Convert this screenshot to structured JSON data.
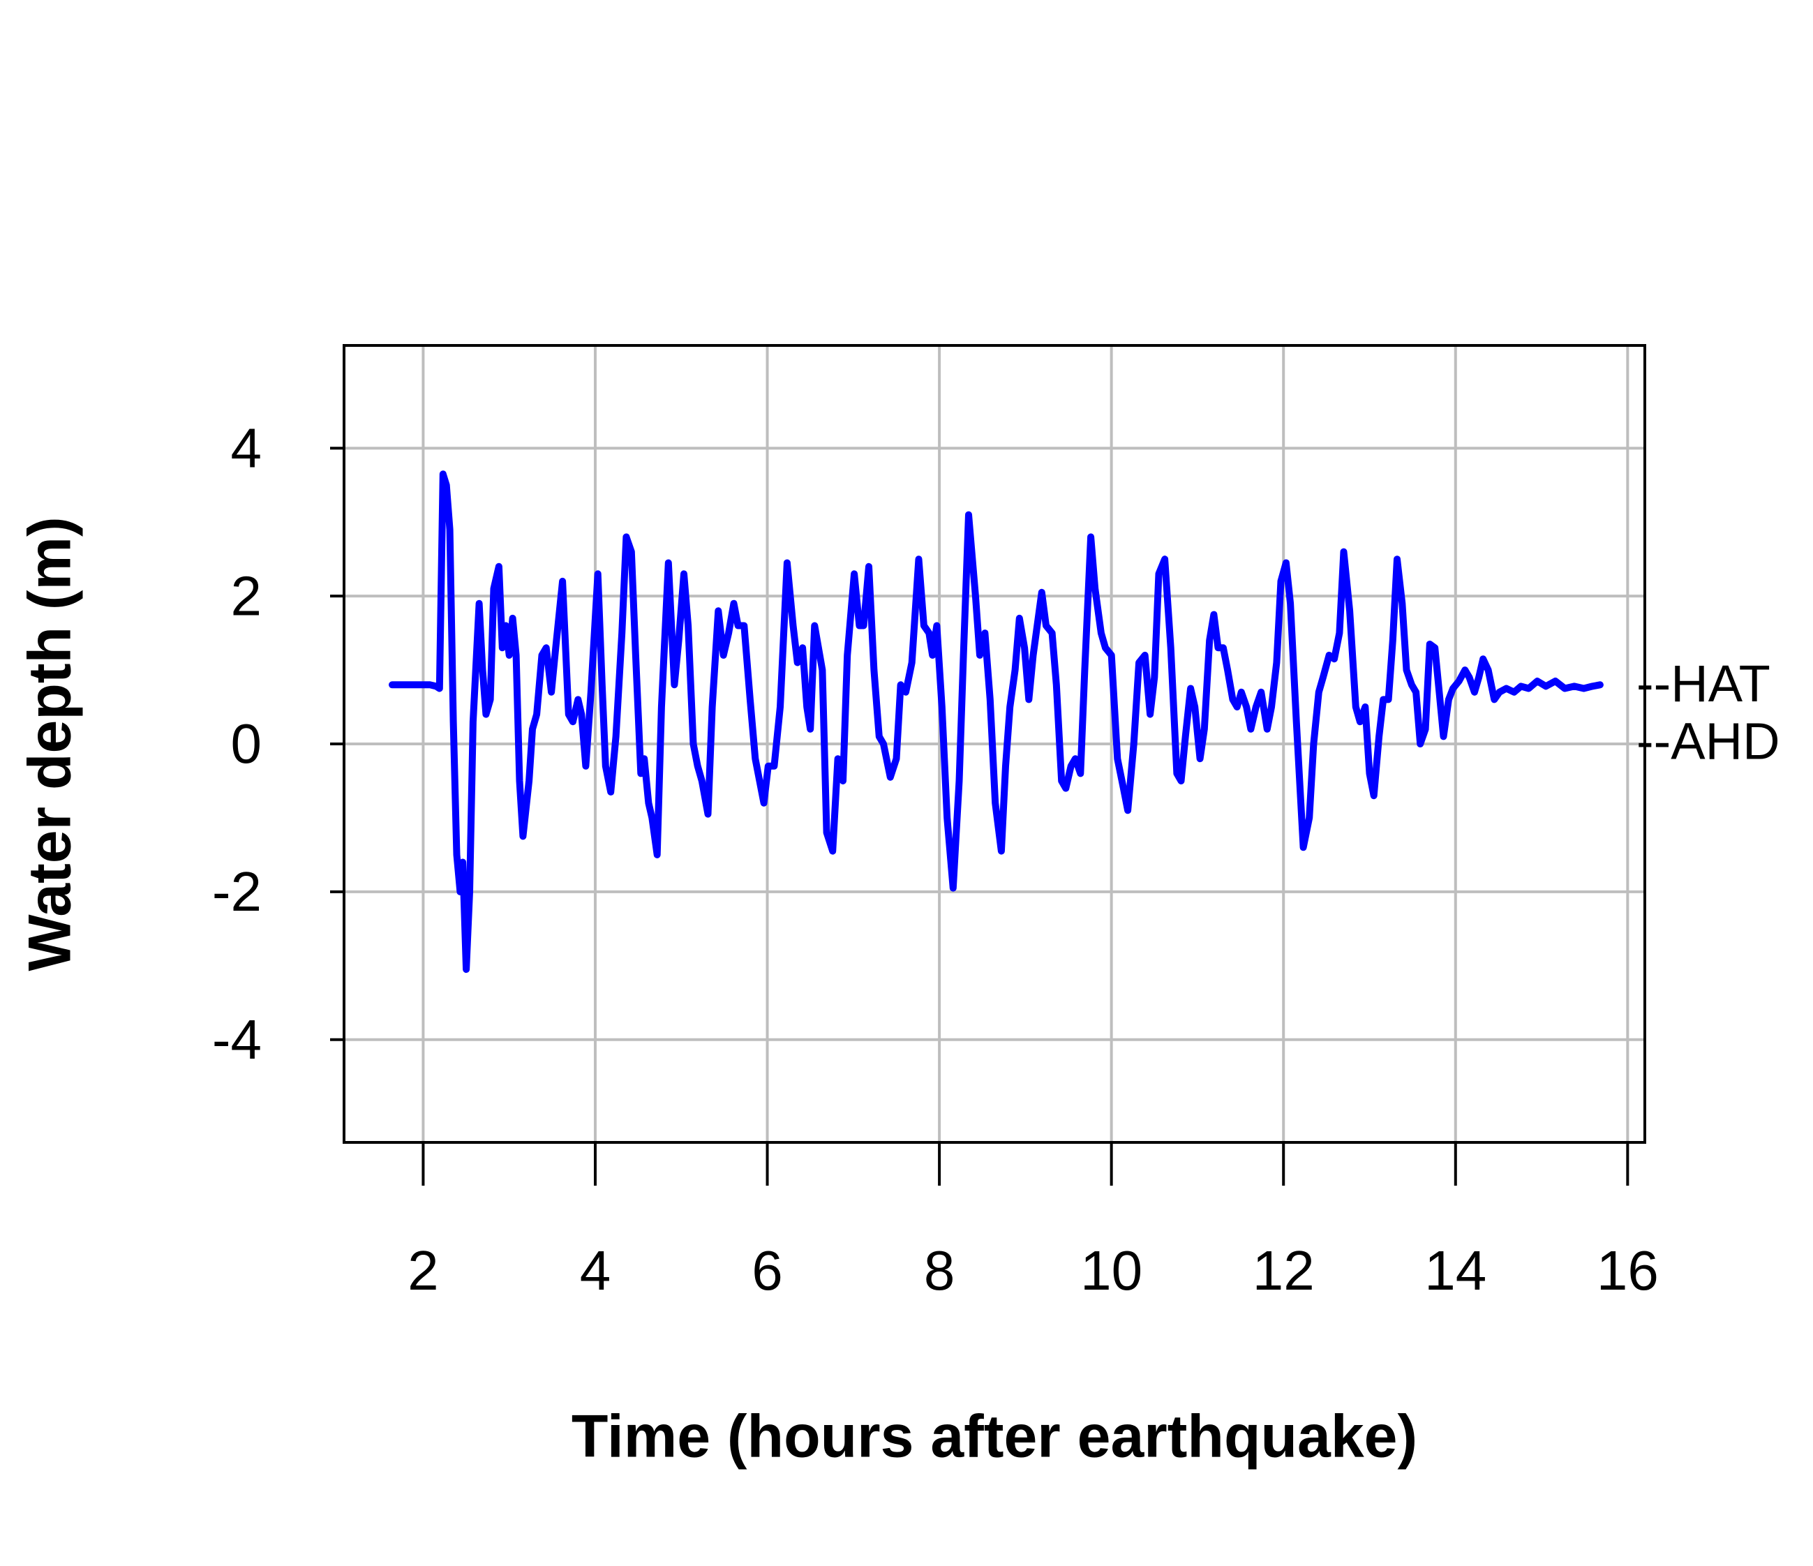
{
  "chart_data": {
    "type": "line",
    "xlabel": "Time (hours after earthquake)",
    "ylabel": "Water depth (m)",
    "x": [
      1.64,
      2.08,
      2.15,
      2.19,
      2.23,
      2.27,
      2.31,
      2.35,
      2.39,
      2.43,
      2.46,
      2.5,
      2.54,
      2.58,
      2.65,
      2.69,
      2.73,
      2.78,
      2.82,
      2.88,
      2.92,
      2.96,
      3.0,
      3.04,
      3.08,
      3.12,
      3.16,
      3.23,
      3.27,
      3.32,
      3.38,
      3.43,
      3.49,
      3.54,
      3.62,
      3.69,
      3.74,
      3.8,
      3.84,
      3.89,
      3.95,
      4.03,
      4.08,
      4.12,
      4.18,
      4.24,
      4.31,
      4.36,
      4.42,
      4.47,
      4.53,
      4.57,
      4.62,
      4.66,
      4.72,
      4.77,
      4.85,
      4.92,
      4.97,
      5.03,
      5.08,
      5.14,
      5.19,
      5.24,
      5.31,
      5.36,
      5.43,
      5.49,
      5.55,
      5.61,
      5.66,
      5.73,
      5.8,
      5.86,
      5.96,
      6.01,
      6.08,
      6.15,
      6.23,
      6.3,
      6.35,
      6.41,
      6.46,
      6.5,
      6.55,
      6.64,
      6.69,
      6.76,
      6.82,
      6.88,
      6.93,
      7.01,
      7.07,
      7.12,
      7.18,
      7.24,
      7.3,
      7.35,
      7.43,
      7.5,
      7.55,
      7.61,
      7.68,
      7.76,
      7.82,
      7.88,
      7.92,
      7.97,
      8.03,
      8.09,
      8.16,
      8.23,
      8.28,
      8.34,
      8.42,
      8.47,
      8.53,
      8.59,
      8.65,
      8.72,
      8.77,
      8.82,
      8.88,
      8.93,
      8.99,
      9.04,
      9.09,
      9.19,
      9.24,
      9.31,
      9.36,
      9.42,
      9.47,
      9.53,
      9.58,
      9.64,
      9.69,
      9.76,
      9.81,
      9.88,
      9.93,
      10.0,
      10.07,
      10.14,
      10.19,
      10.26,
      10.32,
      10.39,
      10.45,
      10.5,
      10.55,
      10.62,
      10.69,
      10.76,
      10.81,
      10.86,
      10.92,
      10.97,
      11.03,
      11.08,
      11.14,
      11.19,
      11.24,
      11.3,
      11.35,
      11.41,
      11.46,
      11.51,
      11.57,
      11.62,
      11.68,
      11.74,
      11.81,
      11.86,
      11.92,
      11.97,
      12.03,
      12.08,
      12.15,
      12.23,
      12.3,
      12.35,
      12.41,
      12.46,
      12.53,
      12.59,
      12.65,
      12.7,
      12.77,
      12.84,
      12.89,
      12.95,
      13.0,
      13.05,
      13.11,
      13.16,
      13.22,
      13.27,
      13.32,
      13.38,
      13.43,
      13.49,
      13.54,
      13.59,
      13.65,
      13.7,
      13.76,
      13.81,
      13.86,
      13.92,
      13.97,
      14.04,
      14.11,
      14.16,
      14.22,
      14.27,
      14.32,
      14.38,
      14.45,
      14.51,
      14.59,
      14.68,
      14.76,
      14.85,
      14.95,
      15.05,
      15.16,
      15.27,
      15.38,
      15.49,
      15.59,
      15.68
    ],
    "values": [
      0.8,
      0.8,
      0.78,
      0.75,
      3.65,
      3.5,
      2.9,
      0.3,
      -1.5,
      -2.0,
      -1.6,
      -3.05,
      -2.0,
      0.3,
      1.9,
      1.0,
      0.4,
      0.6,
      2.1,
      2.4,
      1.3,
      1.6,
      1.2,
      1.7,
      1.2,
      -0.5,
      -1.25,
      -0.5,
      0.2,
      0.4,
      1.2,
      1.3,
      0.7,
      1.3,
      2.2,
      0.4,
      0.3,
      0.6,
      0.4,
      -0.3,
      0.7,
      2.3,
      0.8,
      -0.3,
      -0.65,
      0.1,
      1.5,
      2.8,
      2.6,
      1.2,
      -0.4,
      -0.2,
      -0.8,
      -1.0,
      -1.5,
      0.5,
      2.45,
      0.8,
      1.4,
      2.3,
      1.6,
      0.0,
      -0.3,
      -0.5,
      -0.95,
      0.5,
      1.8,
      1.2,
      1.5,
      1.9,
      1.6,
      1.6,
      0.6,
      -0.2,
      -0.8,
      -0.3,
      -0.3,
      0.5,
      2.45,
      1.6,
      1.1,
      1.3,
      0.5,
      0.2,
      1.6,
      1.0,
      -1.2,
      -1.45,
      -0.2,
      -0.5,
      1.2,
      2.3,
      1.6,
      1.6,
      2.4,
      1.0,
      0.1,
      0.0,
      -0.45,
      -0.2,
      0.8,
      0.7,
      1.1,
      2.5,
      1.6,
      1.5,
      1.2,
      1.6,
      0.5,
      -1.0,
      -1.95,
      -0.5,
      1.2,
      3.1,
      2.0,
      1.2,
      1.5,
      0.6,
      -0.8,
      -1.45,
      -0.3,
      0.5,
      1.0,
      1.7,
      1.3,
      0.6,
      1.2,
      2.05,
      1.6,
      1.5,
      0.8,
      -0.5,
      -0.6,
      -0.3,
      -0.2,
      -0.4,
      1.0,
      2.8,
      2.1,
      1.5,
      1.3,
      1.2,
      -0.2,
      -0.6,
      -0.9,
      0.0,
      1.1,
      1.2,
      0.4,
      0.9,
      2.3,
      2.5,
      1.3,
      -0.4,
      -0.5,
      0.1,
      0.75,
      0.5,
      -0.2,
      0.2,
      1.4,
      1.75,
      1.3,
      1.3,
      1.0,
      0.6,
      0.5,
      0.7,
      0.5,
      0.2,
      0.5,
      0.7,
      0.2,
      0.5,
      1.1,
      2.2,
      2.45,
      1.9,
      0.3,
      -1.4,
      -1.0,
      0.0,
      0.7,
      0.9,
      1.2,
      1.15,
      1.5,
      2.6,
      1.8,
      0.5,
      0.3,
      0.5,
      -0.4,
      -0.7,
      0.1,
      0.6,
      0.6,
      1.4,
      2.5,
      1.9,
      1.0,
      0.8,
      0.7,
      0.0,
      0.2,
      1.35,
      1.3,
      0.7,
      0.1,
      0.6,
      0.75,
      0.85,
      1.0,
      0.9,
      0.7,
      0.9,
      1.15,
      1.0,
      0.6,
      0.7,
      0.75,
      0.7,
      0.78,
      0.75,
      0.85,
      0.78,
      0.85,
      0.75,
      0.78,
      0.75,
      0.78,
      0.8
    ],
    "color": "#0000ff",
    "xlim": [
      1.08,
      16.2
    ],
    "xticks": [
      2,
      4,
      6,
      8,
      10,
      12,
      14,
      16
    ],
    "ylim": [
      -5.39,
      5.39
    ],
    "yticks": [
      -4,
      -2,
      0,
      2,
      4
    ],
    "grid": true,
    "annotations": [
      {
        "label": "--HAT",
        "y": 0.78
      },
      {
        "label": "--AHD",
        "y": 0
      }
    ]
  }
}
